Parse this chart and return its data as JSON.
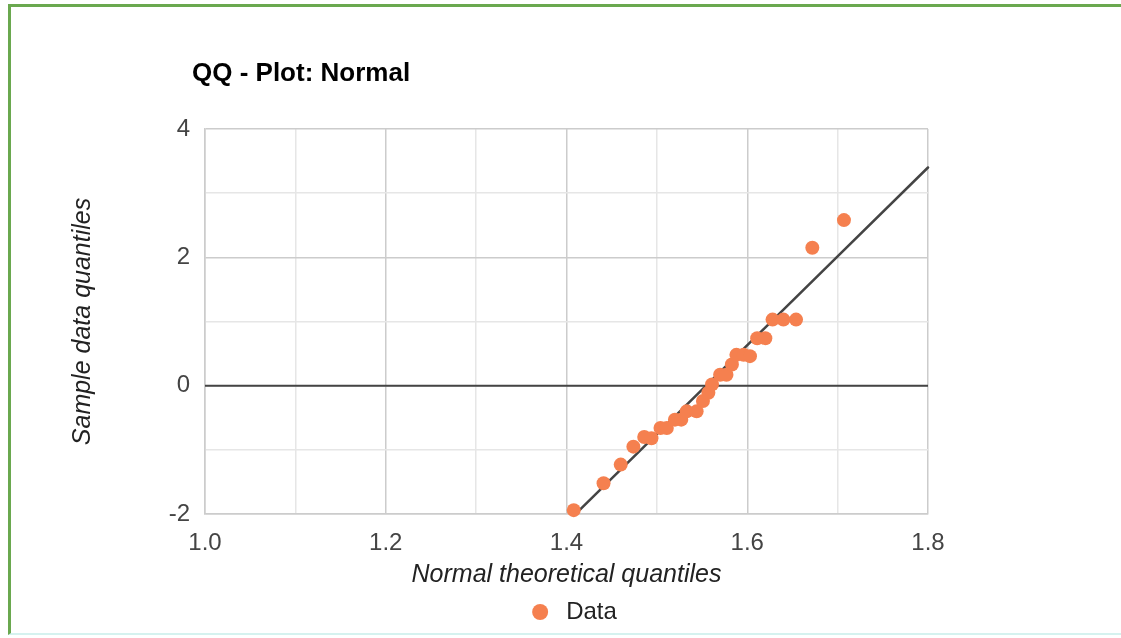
{
  "chart_data": {
    "type": "scatter",
    "title": "QQ - Plot: Normal",
    "xlabel": "Normal theoretical quantiles",
    "ylabel": "Sample data quantiles",
    "series": [
      {
        "name": "Data",
        "color": "#f5804f",
        "x": [
          1.408,
          1.441,
          1.46,
          1.474,
          1.486,
          1.494,
          1.504,
          1.511,
          1.52,
          1.527,
          1.533,
          1.544,
          1.551,
          1.557,
          1.561,
          1.57,
          1.577,
          1.583,
          1.588,
          1.596,
          1.603,
          1.611,
          1.62,
          1.628,
          1.64,
          1.654,
          1.672,
          1.707
        ],
        "values": [
          -1.94,
          -1.52,
          -1.23,
          -0.95,
          -0.8,
          -0.82,
          -0.66,
          -0.66,
          -0.53,
          -0.53,
          -0.4,
          -0.4,
          -0.24,
          -0.11,
          0.02,
          0.17,
          0.17,
          0.33,
          0.48,
          0.48,
          0.46,
          0.74,
          0.74,
          1.03,
          1.03,
          1.03,
          2.15,
          2.58
        ]
      },
      {
        "type": "line",
        "color": "#444444",
        "marker": "none",
        "x": [
          1.41,
          1.8
        ],
        "values": [
          -2,
          3.4
        ]
      }
    ],
    "xlim": [
      1,
      1.8
    ],
    "xticks": [
      {
        "value": 1,
        "label": "1.0"
      },
      {
        "value": 1.1,
        "label": null
      },
      1.2,
      {
        "value": 1.3,
        "label": null
      },
      1.4,
      {
        "value": 1.5,
        "label": null
      },
      1.6,
      {
        "value": 1.7,
        "label": null
      },
      1.8
    ],
    "ylim": [
      -2,
      4
    ],
    "yticks": [
      -2,
      {
        "value": -1,
        "label": null
      },
      0,
      {
        "value": 1,
        "label": null
      },
      2,
      {
        "value": 3,
        "label": null
      },
      4
    ],
    "ref_lines": [
      {
        "axis": "y",
        "value": 0,
        "color": "#444444"
      }
    ],
    "grid": true,
    "legend": "bottom",
    "marker": "circle"
  }
}
